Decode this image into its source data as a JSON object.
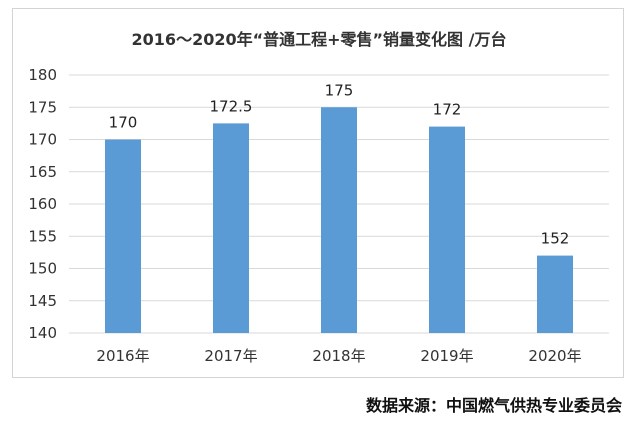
{
  "chart_data": {
    "type": "bar",
    "title": "2016～2020年“普通工程+零售”销量变化图  /万台",
    "categories": [
      "2016年",
      "2017年",
      "2018年",
      "2019年",
      "2020年"
    ],
    "series": [
      {
        "values": [
          170,
          172.5,
          175,
          172,
          152
        ],
        "labels": [
          "170",
          "172.5",
          "175",
          "172",
          "152"
        ]
      }
    ],
    "ylim": [
      140,
      180
    ],
    "yticks": [
      140,
      145,
      150,
      155,
      160,
      165,
      170,
      175,
      180
    ],
    "grid": true,
    "bar_color": "#5b9bd5",
    "grid_color": "#d9d9d9"
  },
  "source": "数据来源：中国燃气供热专业委员会"
}
